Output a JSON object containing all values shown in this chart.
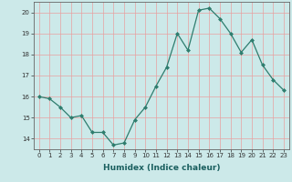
{
  "x": [
    0,
    1,
    2,
    3,
    4,
    5,
    6,
    7,
    8,
    9,
    10,
    11,
    12,
    13,
    14,
    15,
    16,
    17,
    18,
    19,
    20,
    21,
    22,
    23
  ],
  "y": [
    16.0,
    15.9,
    15.5,
    15.0,
    15.1,
    14.3,
    14.3,
    13.7,
    13.8,
    14.9,
    15.5,
    16.5,
    17.4,
    19.0,
    18.2,
    20.1,
    20.2,
    19.7,
    19.0,
    18.1,
    18.7,
    17.5,
    16.8,
    16.3
  ],
  "xlabel": "Humidex (Indice chaleur)",
  "ylim": [
    13.5,
    20.5
  ],
  "xlim": [
    -0.5,
    23.5
  ],
  "yticks": [
    14,
    15,
    16,
    17,
    18,
    19,
    20
  ],
  "xticks": [
    0,
    1,
    2,
    3,
    4,
    5,
    6,
    7,
    8,
    9,
    10,
    11,
    12,
    13,
    14,
    15,
    16,
    17,
    18,
    19,
    20,
    21,
    22,
    23
  ],
  "line_color": "#2e7d6e",
  "marker": "D",
  "marker_size": 2.0,
  "bg_color": "#cce9e9",
  "grid_color": "#e8a0a0",
  "line_width": 0.9,
  "tick_fontsize": 5.0,
  "xlabel_fontsize": 6.5
}
